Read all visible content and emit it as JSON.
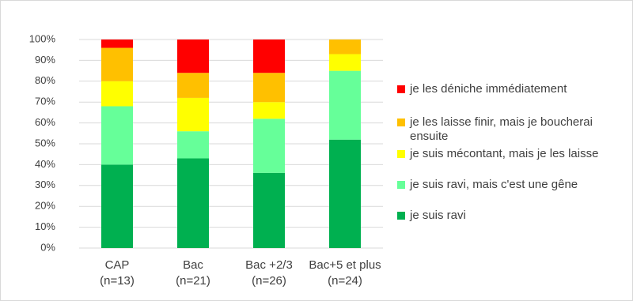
{
  "chart_data": {
    "type": "stacked_bar",
    "categories": [
      "CAP\n(n=13)",
      "Bac\n(n=21)",
      "Bac +2/3\n(n=26)",
      "Bac+5 et plus\n(n=24)"
    ],
    "series": [
      {
        "name": "je suis ravi",
        "color": "#00b050",
        "values": [
          40,
          43,
          36,
          52
        ]
      },
      {
        "name": "je suis ravi, mais c'est une gêne",
        "color": "#66ff99",
        "values": [
          28,
          13,
          26,
          33
        ]
      },
      {
        "name": "je suis mécontant, mais je les laisse",
        "color": "#ffff00",
        "values": [
          12,
          16,
          8,
          8
        ]
      },
      {
        "name": "je les laisse finir, mais je boucherai ensuite",
        "color": "#ffc000",
        "values": [
          16,
          12,
          14,
          7
        ]
      },
      {
        "name": "je les déniche immédiatement",
        "color": "#ff0000",
        "values": [
          4,
          16,
          16,
          0
        ]
      }
    ],
    "ylim": [
      0,
      100
    ],
    "yticks": [
      {
        "value": 0,
        "label": "0%"
      },
      {
        "value": 10,
        "label": "10%"
      },
      {
        "value": 20,
        "label": "20%"
      },
      {
        "value": 30,
        "label": "30%"
      },
      {
        "value": 40,
        "label": "40%"
      },
      {
        "value": 50,
        "label": "50%"
      },
      {
        "value": 60,
        "label": "60%"
      },
      {
        "value": 70,
        "label": "70%"
      },
      {
        "value": 80,
        "label": "80%"
      },
      {
        "value": 90,
        "label": "90%"
      },
      {
        "value": 100,
        "label": "100%"
      }
    ],
    "grid": true,
    "legend": "right"
  }
}
